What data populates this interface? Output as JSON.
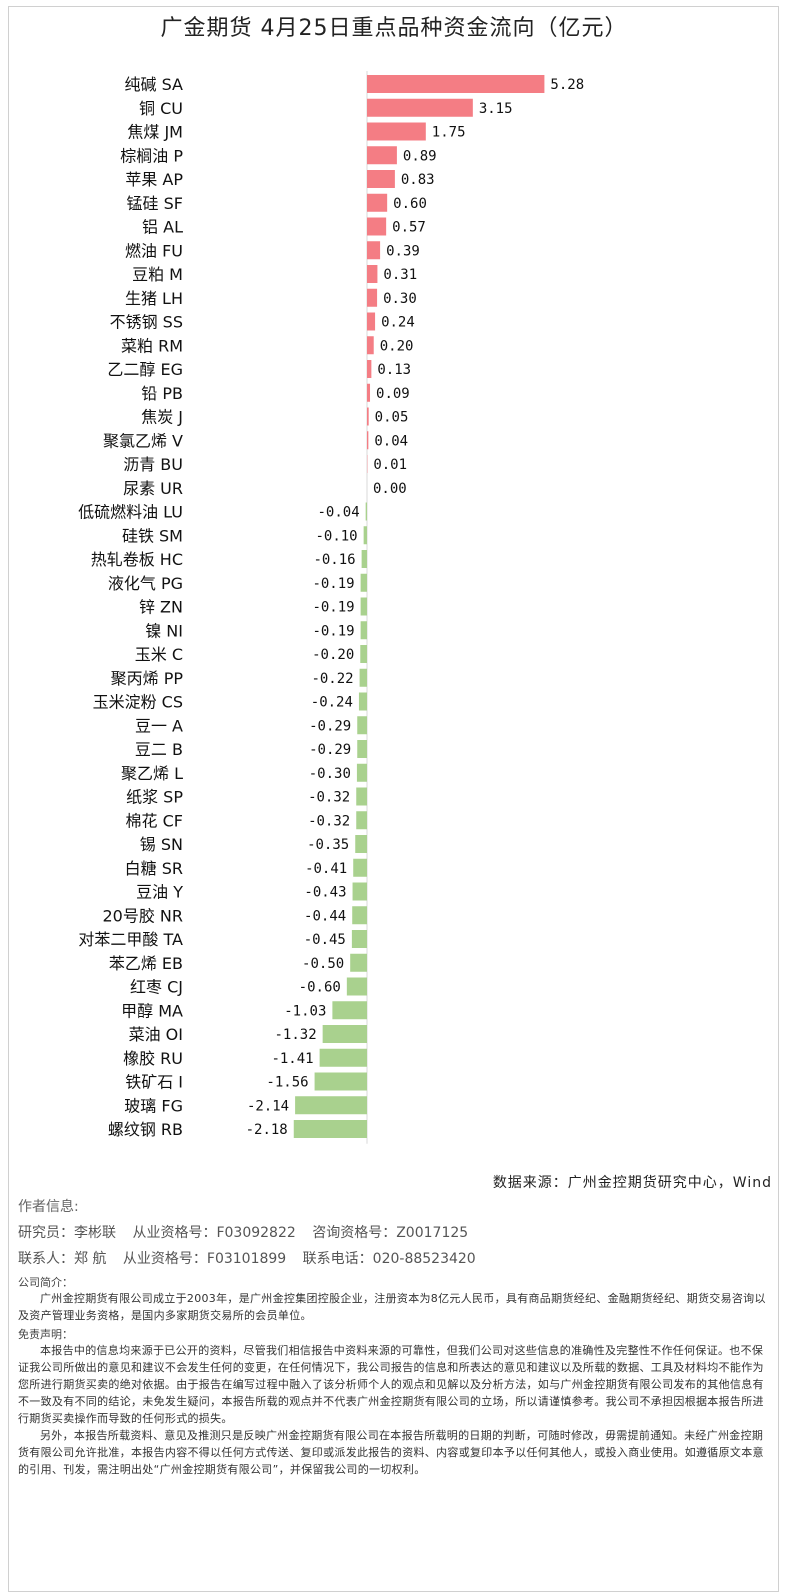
{
  "title": "广金期货 4月25日重点品种资金流向（亿元）",
  "colors": {
    "positive": "#f47d84",
    "negative": "#a9d18e",
    "text": "#111111"
  },
  "chart_data": {
    "type": "bar",
    "orientation": "horizontal",
    "title": "广金期货 4月25日重点品种资金流向（亿元）",
    "categories": [
      "纯碱 SA",
      "铜 CU",
      "焦煤 JM",
      "棕榈油 P",
      "苹果 AP",
      "锰硅 SF",
      "铝 AL",
      "燃油 FU",
      "豆粕 M",
      "生猪 LH",
      "不锈钢 SS",
      "菜粕 RM",
      "乙二醇 EG",
      "铅 PB",
      "焦炭 J",
      "聚氯乙烯 V",
      "沥青 BU",
      "尿素 UR",
      "低硫燃料油 LU",
      "硅铁 SM",
      "热轧卷板 HC",
      "液化气 PG",
      "锌 ZN",
      "镍 NI",
      "玉米 C",
      "聚丙烯 PP",
      "玉米淀粉 CS",
      "豆一 A",
      "豆二 B",
      "聚乙烯 L",
      "纸浆 SP",
      "棉花 CF",
      "锡 SN",
      "白糖 SR",
      "豆油 Y",
      "20号胶 NR",
      "对苯二甲酸 TA",
      "苯乙烯 EB",
      "红枣 CJ",
      "甲醇 MA",
      "菜油 OI",
      "橡胶 RU",
      "铁矿石 I",
      "玻璃 FG",
      "螺纹钢 RB"
    ],
    "values": [
      5.28,
      3.15,
      1.75,
      0.89,
      0.83,
      0.6,
      0.57,
      0.39,
      0.31,
      0.3,
      0.24,
      0.2,
      0.13,
      0.09,
      0.05,
      0.04,
      0.01,
      0.0,
      -0.04,
      -0.1,
      -0.16,
      -0.19,
      -0.19,
      -0.19,
      -0.2,
      -0.22,
      -0.24,
      -0.29,
      -0.29,
      -0.3,
      -0.32,
      -0.32,
      -0.35,
      -0.41,
      -0.43,
      -0.44,
      -0.45,
      -0.5,
      -0.6,
      -1.03,
      -1.32,
      -1.41,
      -1.56,
      -2.14,
      -2.18
    ],
    "value_labels": [
      "5.28",
      "3.15",
      "1.75",
      "0.89",
      "0.83",
      "0.60",
      "0.57",
      "0.39",
      "0.31",
      "0.30",
      "0.24",
      "0.20",
      "0.13",
      "0.09",
      "0.05",
      "0.04",
      "0.01",
      "0.00",
      "-0.04",
      "-0.10",
      "-0.16",
      "-0.19",
      "-0.19",
      "-0.19",
      "-0.20",
      "-0.22",
      "-0.24",
      "-0.29",
      "-0.29",
      "-0.30",
      "-0.32",
      "-0.32",
      "-0.35",
      "-0.41",
      "-0.43",
      "-0.44",
      "-0.45",
      "-0.50",
      "-0.60",
      "-1.03",
      "-1.32",
      "-1.41",
      "-1.56",
      "-2.14",
      "-2.18"
    ],
    "grid": false,
    "legend": "none"
  },
  "source": "数据来源：广州金控期货研究中心，Wind",
  "author": {
    "heading": "作者信息:",
    "researcher_label": "研究员：李彬联",
    "researcher_qual": "从业资格号：F03092822",
    "researcher_consult": "咨询资格号：Z0017125",
    "contact_label": "联系人：郑 航",
    "contact_qual": "从业资格号：F03101899",
    "contact_phone": "联系电话：020-88523420"
  },
  "company": {
    "heading": "公司简介：",
    "text": "广州金控期货有限公司成立于2003年，是广州金控集团控股企业，注册资本为8亿元人民币，具有商品期货经纪、金融期货经纪、期货交易咨询以及资产管理业务资格，是国内多家期货交易所的会员单位。"
  },
  "disclaimer": {
    "heading": "免责声明：",
    "p1": "本报告中的信息均来源于已公开的资料，尽管我们相信报告中资料来源的可靠性，但我们公司对这些信息的准确性及完整性不作任何保证。也不保证我公司所做出的意见和建议不会发生任何的变更，在任何情况下，我公司报告的信息和所表达的意见和建议以及所载的数据、工具及材料均不能作为您所进行期货买卖的绝对依据。由于报告在编写过程中融入了该分析师个人的观点和见解以及分析方法，如与广州金控期货有限公司发布的其他信息有不一致及有不同的结论，未免发生疑问，本报告所载的观点并不代表广州金控期货有限公司的立场，所以请谨慎参考。我公司不承担因根据本报告所进行期货买卖操作而导致的任何形式的损失。",
    "p2": "另外，本报告所载资料、意见及推测只是反映广州金控期货有限公司在本报告所载明的日期的判断，可随时修改，毋需提前通知。未经广州金控期货有限公司允许批准，本报告内容不得以任何方式传送、复印或派发此报告的资料、内容或复印本予以任何其他人，或投入商业使用。如遵循原文本意的引用、刊发，需注明出处“广州金控期货有限公司”，并保留我公司的一切权利。"
  }
}
